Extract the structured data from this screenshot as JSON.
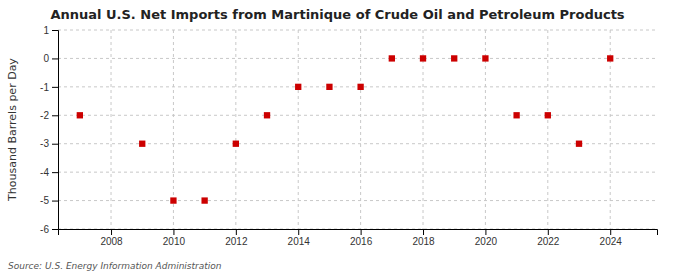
{
  "chart_data": {
    "type": "scatter",
    "title": "Annual U.S. Net Imports from Martinique of Crude Oil and Petroleum Products",
    "ylabel": "Thousand Barrels per Day",
    "annotations": [
      "Source: U.S. Energy Information Administration"
    ],
    "x": [
      2007,
      2009,
      2010,
      2011,
      2012,
      2013,
      2014,
      2015,
      2016,
      2017,
      2018,
      2019,
      2020,
      2021,
      2022,
      2023,
      2024
    ],
    "values": [
      -2,
      -3,
      -5,
      -5,
      -3,
      -2,
      -1,
      -1,
      -1,
      0,
      0,
      0,
      0,
      -2,
      -2,
      -3,
      0
    ],
    "color": "#cc0000",
    "marker": "square",
    "xlim": [
      2006.3,
      2025.5
    ],
    "xticks": [
      2008,
      2010,
      2012,
      2014,
      2016,
      2018,
      2020,
      2022,
      2024
    ],
    "ylim": [
      -6,
      1
    ],
    "yticks": [
      -6,
      -5,
      -4,
      -3,
      -2,
      -1,
      0,
      1
    ],
    "grid": true
  }
}
